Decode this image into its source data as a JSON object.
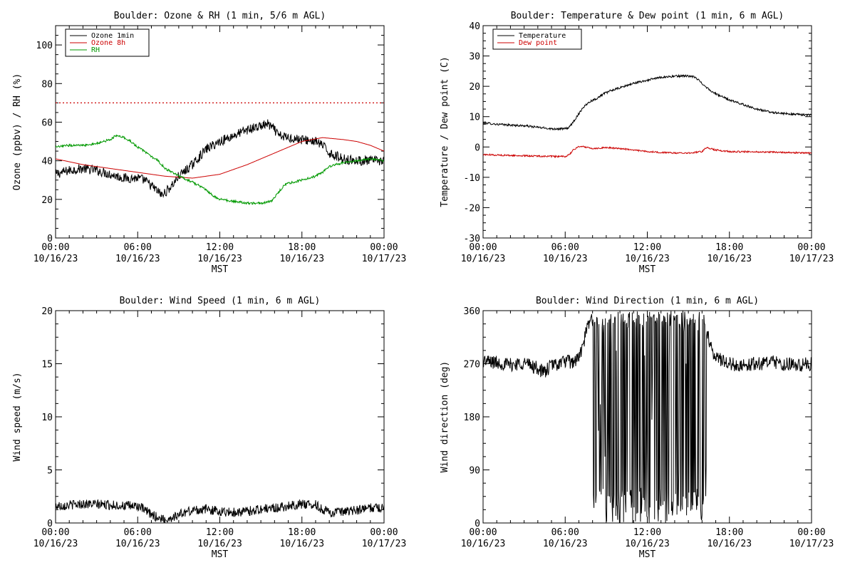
{
  "chart_data": [
    {
      "type": "line",
      "title": "Boulder: Ozone & RH (1 min, 5/6 m AGL)",
      "xlabel": "MST",
      "ylabel": "Ozone (ppbv) / RH (%)",
      "xlim": [
        0,
        24
      ],
      "ylim": [
        0,
        110
      ],
      "yticks": [
        0,
        20,
        40,
        60,
        80,
        100
      ],
      "xtick_labels": [
        {
          "time": "00:00",
          "date": "10/16/23"
        },
        {
          "time": "06:00",
          "date": "10/16/23"
        },
        {
          "time": "12:00",
          "date": "10/16/23"
        },
        {
          "time": "18:00",
          "date": "10/16/23"
        },
        {
          "time": "00:00",
          "date": "10/17/23"
        }
      ],
      "legend": "top-left",
      "reference_line": {
        "y": 70,
        "color": "#cc0000",
        "style": "dotted"
      },
      "series": [
        {
          "name": "Ozone 1min",
          "color": "#000000",
          "noise": 2.5,
          "x": [
            0,
            1,
            2,
            3,
            4,
            5,
            6,
            6.5,
            7,
            7.5,
            7.8,
            8.2,
            8.6,
            9,
            9.5,
            10,
            10.5,
            11,
            11.5,
            12,
            13,
            14,
            15,
            15.5,
            16,
            16.3,
            17,
            18,
            19,
            19.5,
            20,
            21,
            22,
            23,
            24
          ],
          "y": [
            33,
            35,
            36,
            35,
            33,
            31,
            31,
            30,
            27,
            24,
            22,
            25,
            28,
            32,
            35,
            38,
            42,
            46,
            48,
            50,
            53,
            56,
            58,
            59,
            56,
            53,
            52,
            51,
            50,
            48,
            44,
            41,
            40,
            40,
            40
          ]
        },
        {
          "name": "Ozone 8h",
          "color": "#cc0000",
          "noise": 0,
          "x": [
            0,
            2,
            4,
            6,
            8,
            10,
            11,
            12,
            14,
            16,
            18,
            19.5,
            21,
            22,
            23,
            24
          ],
          "y": [
            41,
            38,
            36,
            34,
            32,
            31,
            32,
            33,
            38,
            44,
            50,
            52,
            51,
            50,
            48,
            45
          ]
        },
        {
          "name": "RH",
          "color": "#009900",
          "noise": 0.6,
          "x": [
            0,
            1,
            2,
            3,
            4,
            4.4,
            5,
            5.5,
            6,
            6.5,
            7,
            7.5,
            8,
            9,
            10,
            10.5,
            11,
            11.5,
            12,
            13,
            14,
            15,
            15.8,
            16.2,
            16.8,
            18,
            19,
            19.5,
            20,
            21,
            22,
            23,
            24
          ],
          "y": [
            47,
            48,
            48,
            49,
            51,
            53,
            52,
            50,
            47,
            45,
            42,
            40,
            36,
            32,
            29,
            27,
            25,
            22,
            20,
            19,
            18,
            18,
            19,
            23,
            28,
            30,
            32,
            34,
            37,
            39,
            40,
            41,
            40
          ]
        }
      ]
    },
    {
      "type": "line",
      "title": "Boulder: Temperature & Dew point (1 min, 6 m AGL)",
      "xlabel": "MST",
      "ylabel": "Temperature / Dew point (C)",
      "xlim": [
        0,
        24
      ],
      "ylim": [
        -30,
        40
      ],
      "yticks": [
        -30,
        -20,
        -10,
        0,
        10,
        20,
        30,
        40
      ],
      "xtick_labels": [
        {
          "time": "00:00",
          "date": "10/16/23"
        },
        {
          "time": "06:00",
          "date": "10/16/23"
        },
        {
          "time": "12:00",
          "date": "10/16/23"
        },
        {
          "time": "18:00",
          "date": "10/16/23"
        },
        {
          "time": "00:00",
          "date": "10/17/23"
        }
      ],
      "legend": "top-left",
      "series": [
        {
          "name": "Temperature",
          "color": "#000000",
          "noise": 0.35,
          "x": [
            0,
            1,
            2,
            3,
            4,
            5,
            6,
            6.3,
            6.7,
            7,
            7.3,
            7.8,
            8.3,
            8.8,
            9.3,
            10,
            11,
            12,
            13,
            14,
            14.8,
            15.5,
            16,
            16.5,
            17,
            18,
            19,
            20,
            21,
            22,
            23,
            24
          ],
          "y": [
            8,
            7.5,
            7.2,
            7,
            6.5,
            6,
            6,
            6.5,
            9,
            11,
            13,
            15,
            16,
            17.5,
            18.5,
            19.5,
            21,
            22,
            23,
            23.3,
            23.5,
            23,
            21,
            19,
            17.5,
            15.5,
            14,
            12.5,
            11.5,
            11,
            10.7,
            10.5
          ]
        },
        {
          "name": "Dew point",
          "color": "#cc0000",
          "noise": 0.25,
          "x": [
            0,
            2,
            4,
            6,
            6.3,
            6.6,
            7,
            7.5,
            8,
            9,
            10,
            11,
            12,
            13,
            14,
            15,
            16,
            16.3,
            16.6,
            17,
            18,
            20,
            22,
            24
          ],
          "y": [
            -2.5,
            -2.8,
            -3,
            -3.2,
            -2.5,
            -1,
            0.2,
            0,
            -0.5,
            -0.2,
            -0.5,
            -1,
            -1.5,
            -1.8,
            -2,
            -2,
            -1.5,
            -0.2,
            -0.5,
            -1,
            -1.5,
            -1.6,
            -1.8,
            -2
          ]
        }
      ]
    },
    {
      "type": "line",
      "title": "Boulder: Wind Speed (1 min, 6 m AGL)",
      "xlabel": "MST",
      "ylabel": "Wind speed (m/s)",
      "xlim": [
        0,
        24
      ],
      "ylim": [
        0,
        20
      ],
      "yticks": [
        0,
        5,
        10,
        15,
        20
      ],
      "xtick_labels": [
        {
          "time": "00:00",
          "date": "10/16/23"
        },
        {
          "time": "06:00",
          "date": "10/16/23"
        },
        {
          "time": "12:00",
          "date": "10/16/23"
        },
        {
          "time": "18:00",
          "date": "10/16/23"
        },
        {
          "time": "00:00",
          "date": "10/17/23"
        }
      ],
      "series": [
        {
          "color": "#000000",
          "noise": 0.45,
          "x": [
            0,
            2,
            4,
            5,
            6,
            6.5,
            7,
            7.5,
            8,
            8.5,
            9,
            10,
            11,
            12,
            13,
            14,
            15,
            16,
            17,
            18,
            19,
            19.5,
            20,
            21,
            22,
            23,
            24
          ],
          "y": [
            1.6,
            1.8,
            1.7,
            1.6,
            1.6,
            1.2,
            0.8,
            0.5,
            0.3,
            0.5,
            0.8,
            1.2,
            1.3,
            1.1,
            1.0,
            1.1,
            1.3,
            1.4,
            1.6,
            1.8,
            1.7,
            1.3,
            1.0,
            1.0,
            1.2,
            1.4,
            1.5
          ]
        }
      ]
    },
    {
      "type": "line",
      "title": "Boulder: Wind Direction (1 min, 6 m AGL)",
      "xlabel": "MST",
      "ylabel": "Wind direction (deg)",
      "xlim": [
        0,
        24
      ],
      "ylim": [
        0,
        360
      ],
      "yticks": [
        0,
        90,
        180,
        270,
        360
      ],
      "xtick_labels": [
        {
          "time": "00:00",
          "date": "10/16/23"
        },
        {
          "time": "06:00",
          "date": "10/16/23"
        },
        {
          "time": "12:00",
          "date": "10/16/23"
        },
        {
          "time": "18:00",
          "date": "10/16/23"
        },
        {
          "time": "00:00",
          "date": "10/17/23"
        }
      ],
      "series": [
        {
          "color": "#000000",
          "noise": 12,
          "wrap": [
            8.0,
            16.3
          ],
          "x": [
            0,
            1,
            2,
            3,
            4,
            4.5,
            5,
            5.5,
            6,
            6.5,
            7,
            7.3,
            7.6,
            8,
            16.3,
            16.6,
            17,
            18,
            19,
            20,
            21,
            22,
            23,
            24
          ],
          "y": [
            275,
            272,
            268,
            272,
            262,
            255,
            268,
            270,
            275,
            272,
            280,
            300,
            330,
            350,
            330,
            300,
            280,
            270,
            268,
            270,
            272,
            270,
            268,
            270
          ]
        }
      ]
    }
  ]
}
